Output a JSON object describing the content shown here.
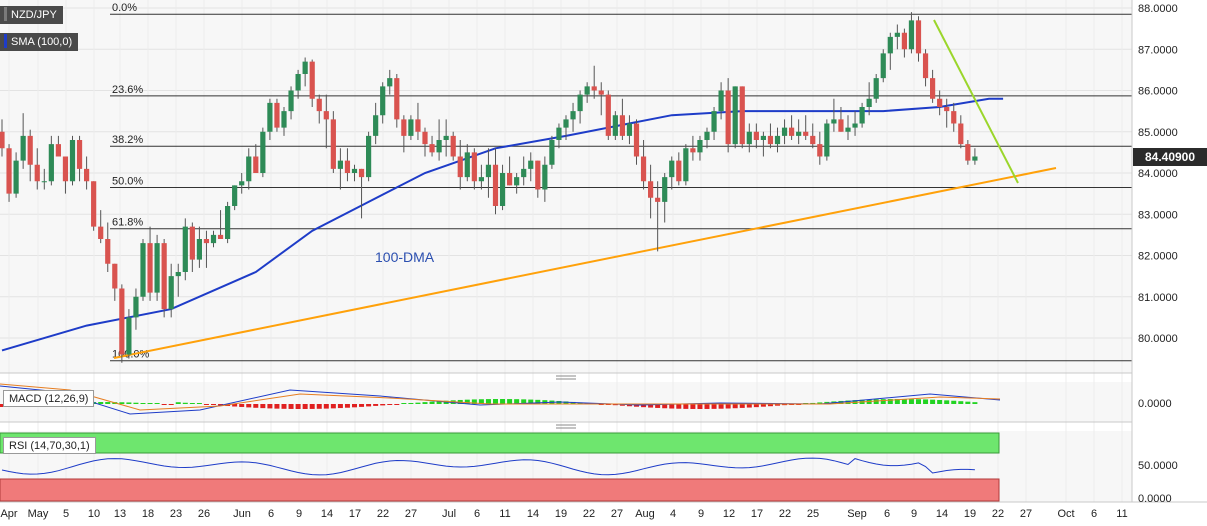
{
  "chart_data": {
    "type": "candlestick",
    "symbol": "NZD/JPY",
    "overlay_label": "SMA (100,0)",
    "dma_label": "100-DMA",
    "last_price": "84.40900",
    "ylim": [
      79.4,
      88.1
    ],
    "y_ticks": [
      "88.0000",
      "87.0000",
      "86.0000",
      "85.0000",
      "84.0000",
      "83.0000",
      "82.0000",
      "81.0000",
      "80.0000"
    ],
    "x_ticks": [
      "Apr",
      "May",
      "5",
      "10",
      "13",
      "18",
      "23",
      "26",
      "Jun",
      "6",
      "9",
      "14",
      "17",
      "22",
      "27",
      "Jul",
      "6",
      "11",
      "14",
      "19",
      "22",
      "27",
      "Aug",
      "4",
      "9",
      "12",
      "17",
      "22",
      "25",
      "Sep",
      "6",
      "9",
      "14",
      "19",
      "22",
      "27",
      "Oct",
      "6",
      "11"
    ],
    "fibonacci": [
      {
        "label": "0.0%",
        "value": 87.85
      },
      {
        "label": "23.6%",
        "value": 85.87
      },
      {
        "label": "38.2%",
        "value": 84.65
      },
      {
        "label": "50.0%",
        "value": 83.65
      },
      {
        "label": "61.8%",
        "value": 82.65
      },
      {
        "label": "100.0%",
        "value": 79.45
      }
    ],
    "candles": [
      [
        85.0,
        85.3,
        84.4,
        84.6
      ],
      [
        84.6,
        84.7,
        83.3,
        83.5
      ],
      [
        83.5,
        84.5,
        83.4,
        84.3
      ],
      [
        84.3,
        85.45,
        84.1,
        84.9
      ],
      [
        84.9,
        85.05,
        83.8,
        84.2
      ],
      [
        84.2,
        84.6,
        83.6,
        83.8
      ],
      [
        83.8,
        84.1,
        83.6,
        83.8
      ],
      [
        83.8,
        84.9,
        83.7,
        84.7
      ],
      [
        84.7,
        84.9,
        84.4,
        84.4
      ],
      [
        84.4,
        84.4,
        83.5,
        83.8
      ],
      [
        83.8,
        84.9,
        83.7,
        84.8
      ],
      [
        84.8,
        84.9,
        83.8,
        84.1
      ],
      [
        84.1,
        84.4,
        83.6,
        83.8
      ],
      [
        83.8,
        83.8,
        82.6,
        82.7
      ],
      [
        82.7,
        83.1,
        82.3,
        82.4
      ],
      [
        82.4,
        82.8,
        81.6,
        81.8
      ],
      [
        81.8,
        81.8,
        80.9,
        81.2
      ],
      [
        81.2,
        81.3,
        79.4,
        79.6
      ],
      [
        79.6,
        80.7,
        79.5,
        80.5
      ],
      [
        80.5,
        81.2,
        80.2,
        81.0
      ],
      [
        81.0,
        82.4,
        80.9,
        82.3
      ],
      [
        82.3,
        82.7,
        80.9,
        81.1
      ],
      [
        81.1,
        82.5,
        80.9,
        82.3
      ],
      [
        82.3,
        82.4,
        80.5,
        80.7
      ],
      [
        80.7,
        81.8,
        80.5,
        81.5
      ],
      [
        81.5,
        81.8,
        81.0,
        81.6
      ],
      [
        81.6,
        82.9,
        81.4,
        82.7
      ],
      [
        82.7,
        82.8,
        81.6,
        81.9
      ],
      [
        81.9,
        82.7,
        81.7,
        82.4
      ],
      [
        82.4,
        82.6,
        81.7,
        82.3
      ],
      [
        82.3,
        82.6,
        82.2,
        82.5
      ],
      [
        82.5,
        83.1,
        82.4,
        82.4
      ],
      [
        82.4,
        83.3,
        82.3,
        83.2
      ],
      [
        83.2,
        83.7,
        83.1,
        83.7
      ],
      [
        83.7,
        84.0,
        83.5,
        83.8
      ],
      [
        83.8,
        84.6,
        83.6,
        84.4
      ],
      [
        84.4,
        84.7,
        84.0,
        84.0
      ],
      [
        84.0,
        85.1,
        83.9,
        85.0
      ],
      [
        85.0,
        85.8,
        84.8,
        85.7
      ],
      [
        85.7,
        85.8,
        85.0,
        85.1
      ],
      [
        85.1,
        85.6,
        84.9,
        85.5
      ],
      [
        85.5,
        86.1,
        85.3,
        86.0
      ],
      [
        86.0,
        86.5,
        85.8,
        86.4
      ],
      [
        86.4,
        86.8,
        86.1,
        86.7
      ],
      [
        86.7,
        86.75,
        85.6,
        85.8
      ],
      [
        85.8,
        85.9,
        85.2,
        85.5
      ],
      [
        85.5,
        85.9,
        84.6,
        85.3
      ],
      [
        85.3,
        85.5,
        84.0,
        84.1
      ],
      [
        84.1,
        84.6,
        83.6,
        84.3
      ],
      [
        84.3,
        84.6,
        83.8,
        84.0
      ],
      [
        84.0,
        84.2,
        83.8,
        84.1
      ],
      [
        84.1,
        84.1,
        82.9,
        83.9
      ],
      [
        83.9,
        85.0,
        83.8,
        84.9
      ],
      [
        84.9,
        85.7,
        84.7,
        85.4
      ],
      [
        85.4,
        86.2,
        85.2,
        86.1
      ],
      [
        86.1,
        86.5,
        85.9,
        86.3
      ],
      [
        86.3,
        86.4,
        85.1,
        85.3
      ],
      [
        85.3,
        85.4,
        84.5,
        84.9
      ],
      [
        84.9,
        85.4,
        84.8,
        85.3
      ],
      [
        85.3,
        85.7,
        84.8,
        85.0
      ],
      [
        85.0,
        85.1,
        84.4,
        84.7
      ],
      [
        84.7,
        84.9,
        84.4,
        84.5
      ],
      [
        84.5,
        85.3,
        84.3,
        84.8
      ],
      [
        84.8,
        85.3,
        84.4,
        84.9
      ],
      [
        84.9,
        85.0,
        84.3,
        84.4
      ],
      [
        84.4,
        84.8,
        83.6,
        83.9
      ],
      [
        83.9,
        84.7,
        83.8,
        84.5
      ],
      [
        84.5,
        84.6,
        83.6,
        83.8
      ],
      [
        83.8,
        84.2,
        83.6,
        83.9
      ],
      [
        83.9,
        84.6,
        83.4,
        84.2
      ],
      [
        84.2,
        84.6,
        83.0,
        83.2
      ],
      [
        83.2,
        84.2,
        83.1,
        84.0
      ],
      [
        84.0,
        84.4,
        83.7,
        83.7
      ],
      [
        83.7,
        84.0,
        83.5,
        83.9
      ],
      [
        83.9,
        84.4,
        83.7,
        84.1
      ],
      [
        84.1,
        84.5,
        83.8,
        84.3
      ],
      [
        84.3,
        84.3,
        83.4,
        83.6
      ],
      [
        83.6,
        84.4,
        83.3,
        84.2
      ],
      [
        84.2,
        84.9,
        84.1,
        84.8
      ],
      [
        84.8,
        85.2,
        84.6,
        85.1
      ],
      [
        85.1,
        85.4,
        84.8,
        85.3
      ],
      [
        85.3,
        85.7,
        85.0,
        85.5
      ],
      [
        85.5,
        86.0,
        85.2,
        85.9
      ],
      [
        85.9,
        86.2,
        85.7,
        86.1
      ],
      [
        86.1,
        86.6,
        85.8,
        86.0
      ],
      [
        86.0,
        86.2,
        85.4,
        85.9
      ],
      [
        85.9,
        86.0,
        84.8,
        84.9
      ],
      [
        84.9,
        85.5,
        84.8,
        85.4
      ],
      [
        85.4,
        85.8,
        84.8,
        84.9
      ],
      [
        84.9,
        85.4,
        84.7,
        85.2
      ],
      [
        85.2,
        85.3,
        84.2,
        84.4
      ],
      [
        84.4,
        84.8,
        83.6,
        83.8
      ],
      [
        83.8,
        84.2,
        82.9,
        83.4
      ],
      [
        83.4,
        83.8,
        82.1,
        83.3
      ],
      [
        83.3,
        84.0,
        82.8,
        83.9
      ],
      [
        83.9,
        84.4,
        83.6,
        84.3
      ],
      [
        84.3,
        84.5,
        83.7,
        83.8
      ],
      [
        83.8,
        84.7,
        83.7,
        84.6
      ],
      [
        84.6,
        84.9,
        84.3,
        84.5
      ],
      [
        84.5,
        84.9,
        84.3,
        84.8
      ],
      [
        84.8,
        85.1,
        84.6,
        85.0
      ],
      [
        85.0,
        85.6,
        84.8,
        85.5
      ],
      [
        85.5,
        86.2,
        85.3,
        86.0
      ],
      [
        86.0,
        86.3,
        84.5,
        84.7
      ],
      [
        84.7,
        86.1,
        84.6,
        86.1
      ],
      [
        86.1,
        86.1,
        84.6,
        84.7
      ],
      [
        84.7,
        85.2,
        84.5,
        85.0
      ],
      [
        85.0,
        85.2,
        84.6,
        84.8
      ],
      [
        84.8,
        85.0,
        84.4,
        84.9
      ],
      [
        84.9,
        85.2,
        84.6,
        84.7
      ],
      [
        84.7,
        85.1,
        84.5,
        84.9
      ],
      [
        84.9,
        85.3,
        84.7,
        85.1
      ],
      [
        85.1,
        85.4,
        84.8,
        84.9
      ],
      [
        84.9,
        85.3,
        84.7,
        85.0
      ],
      [
        85.0,
        85.4,
        84.8,
        84.9
      ],
      [
        84.9,
        85.2,
        84.6,
        84.7
      ],
      [
        84.7,
        85.0,
        84.2,
        84.4
      ],
      [
        84.4,
        85.3,
        84.3,
        85.2
      ],
      [
        85.2,
        85.8,
        85.0,
        85.3
      ],
      [
        85.3,
        85.6,
        85.0,
        85.0
      ],
      [
        85.0,
        85.4,
        84.8,
        85.1
      ],
      [
        85.1,
        85.5,
        84.9,
        85.2
      ],
      [
        85.2,
        85.7,
        85.1,
        85.6
      ],
      [
        85.6,
        86.2,
        85.4,
        85.8
      ],
      [
        85.8,
        86.4,
        85.7,
        86.3
      ],
      [
        86.3,
        87.0,
        86.2,
        86.9
      ],
      [
        86.9,
        87.4,
        86.5,
        87.3
      ],
      [
        87.3,
        87.6,
        87.0,
        87.4
      ],
      [
        87.4,
        87.5,
        86.8,
        87.0
      ],
      [
        87.0,
        87.9,
        86.9,
        87.7
      ],
      [
        87.7,
        87.8,
        86.7,
        86.9
      ],
      [
        86.9,
        87.0,
        86.1,
        86.3
      ],
      [
        86.3,
        86.5,
        85.7,
        85.8
      ],
      [
        85.8,
        86.0,
        85.4,
        85.6
      ],
      [
        85.6,
        85.8,
        85.1,
        85.5
      ],
      [
        85.5,
        85.7,
        85.0,
        85.2
      ],
      [
        85.2,
        85.4,
        84.6,
        84.7
      ],
      [
        84.7,
        84.8,
        84.2,
        84.3
      ],
      [
        84.3,
        84.6,
        84.2,
        84.4
      ]
    ],
    "sma100": [
      [
        0,
        79.7
      ],
      [
        12,
        80.3
      ],
      [
        24,
        80.7
      ],
      [
        36,
        81.6
      ],
      [
        44,
        82.6
      ],
      [
        52,
        83.3
      ],
      [
        60,
        84.0
      ],
      [
        70,
        84.6
      ],
      [
        80,
        84.9
      ],
      [
        95,
        85.4
      ],
      [
        105,
        85.5
      ],
      [
        115,
        85.5
      ],
      [
        125,
        85.5
      ],
      [
        133,
        85.6
      ],
      [
        140,
        85.8
      ],
      [
        142,
        85.8
      ]
    ],
    "tags": {
      "macd": "MACD (12,26,9)",
      "rsi": "RSI (14,70,30,1)"
    },
    "macd_ticks": [
      "0.0000"
    ],
    "rsi_ticks": [
      "50.0000",
      "0.0000"
    ]
  }
}
